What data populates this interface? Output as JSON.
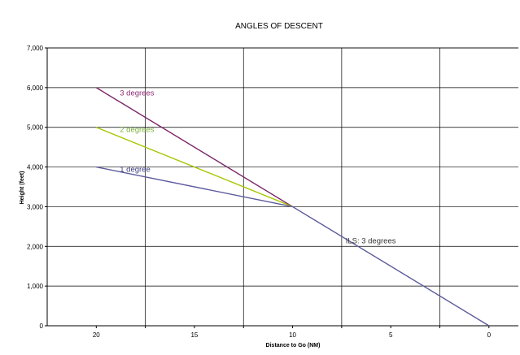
{
  "chart_data": {
    "type": "line",
    "title": "ANGLES OF DESCENT",
    "xlabel": "Distance to Go (NM)",
    "ylabel": "Height (feet)",
    "xlim": [
      22.5,
      -1.5
    ],
    "ylim": [
      0,
      7000
    ],
    "x_reversed": true,
    "x_ticks": [
      20,
      15,
      10,
      5,
      0
    ],
    "x_tick_labels": [
      "20",
      "15",
      "10",
      "5",
      "0"
    ],
    "y_ticks": [
      0,
      1000,
      2000,
      3000,
      4000,
      5000,
      6000,
      7000
    ],
    "y_tick_labels": [
      "0",
      "1,000",
      "2,000",
      "3,000",
      "4,000",
      "5,000",
      "6,000",
      "7,000"
    ],
    "grid": true,
    "series": [
      {
        "name": "3 degrees",
        "color": "#7B2466",
        "x": [
          20,
          10
        ],
        "y": [
          6000,
          3000
        ]
      },
      {
        "name": "2 degrees",
        "color": "#A8C500",
        "x": [
          20,
          10
        ],
        "y": [
          5000,
          3000
        ]
      },
      {
        "name": "1 degree",
        "color": "#5B5B9B",
        "x": [
          20,
          10
        ],
        "y": [
          4000,
          3000
        ]
      },
      {
        "name": "ILS: 3 degrees",
        "color": "#5B5B9B",
        "x": [
          10,
          0
        ],
        "y": [
          3000,
          0
        ]
      }
    ],
    "annotations": [
      {
        "text": "3 degrees",
        "color": "#8E2A73",
        "x": 18.8,
        "y": 5800
      },
      {
        "text": "2 degrees",
        "color": "#79B23A",
        "x": 18.8,
        "y": 4880
      },
      {
        "text": "1 degree",
        "color": "#3A3A80",
        "x": 18.8,
        "y": 3880
      },
      {
        "text": "ILS: 3 degrees",
        "color": "#333333",
        "x": 7.3,
        "y": 2080
      }
    ]
  }
}
